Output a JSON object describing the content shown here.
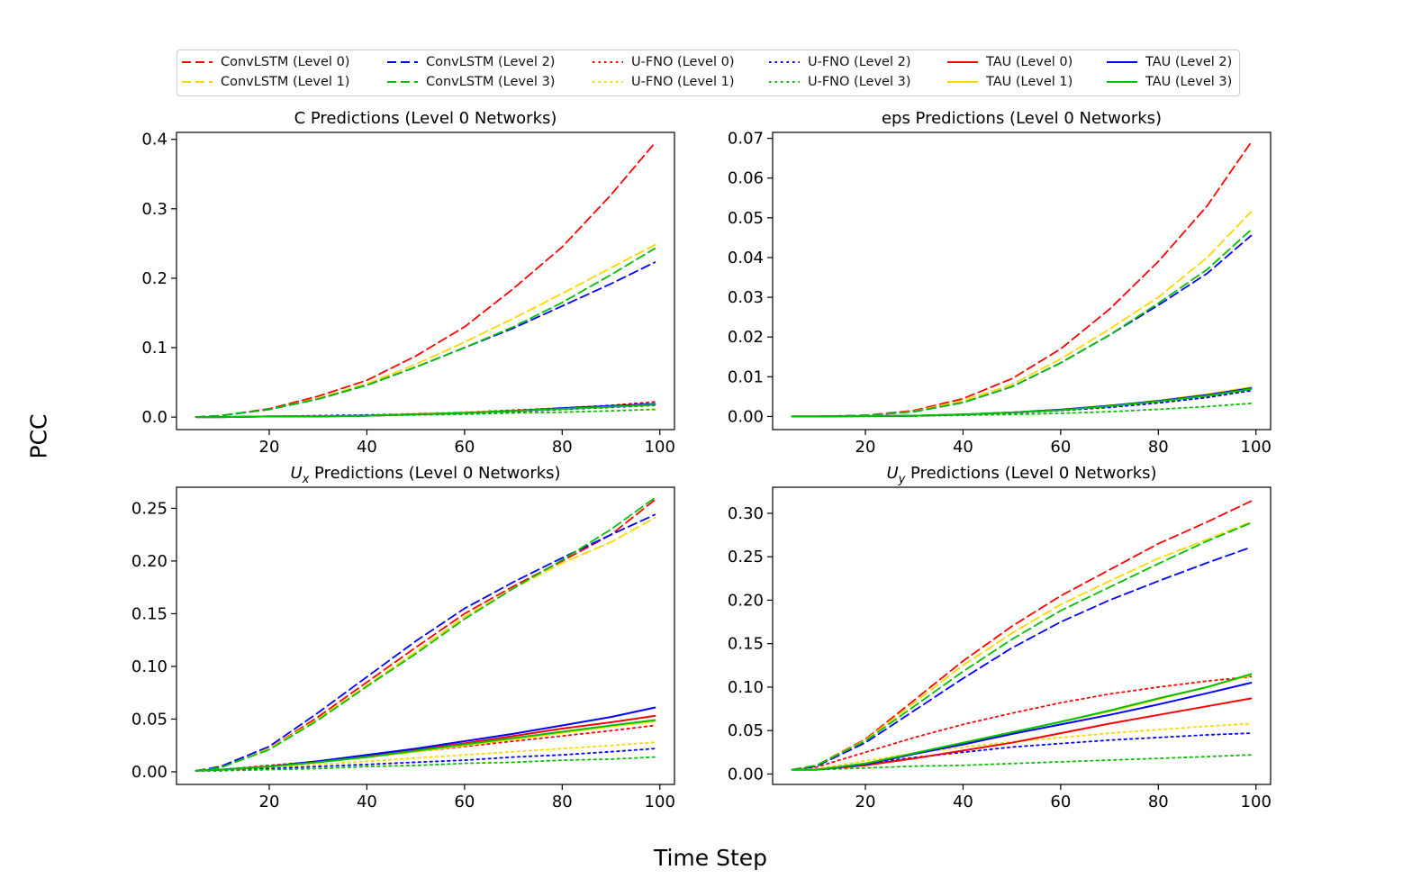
{
  "figure": {
    "ylabel": "PCC",
    "xlabel": "Time Step"
  },
  "legend": [
    {
      "label": "ConvLSTM (Level 0)",
      "color": "#ff0000",
      "style": "dashed"
    },
    {
      "label": "ConvLSTM (Level 1)",
      "color": "#ffd700",
      "style": "dashed"
    },
    {
      "label": "ConvLSTM (Level 2)",
      "color": "#0000ff",
      "style": "dashed"
    },
    {
      "label": "ConvLSTM (Level 3)",
      "color": "#00c000",
      "style": "dashed"
    },
    {
      "label": "U-FNO (Level 0)",
      "color": "#ff0000",
      "style": "dotted"
    },
    {
      "label": "U-FNO (Level 1)",
      "color": "#ffd700",
      "style": "dotted"
    },
    {
      "label": "U-FNO (Level 2)",
      "color": "#0000ff",
      "style": "dotted"
    },
    {
      "label": "U-FNO (Level 3)",
      "color": "#00c000",
      "style": "dotted"
    },
    {
      "label": "TAU (Level 0)",
      "color": "#ff0000",
      "style": "solid"
    },
    {
      "label": "TAU (Level 1)",
      "color": "#ffd700",
      "style": "solid"
    },
    {
      "label": "TAU (Level 2)",
      "color": "#0000ff",
      "style": "solid"
    },
    {
      "label": "TAU (Level 3)",
      "color": "#00c000",
      "style": "solid"
    }
  ],
  "chart_data": [
    {
      "type": "line",
      "title": "C Predictions (Level 0 Networks)",
      "x": [
        5,
        10,
        20,
        30,
        40,
        50,
        60,
        70,
        80,
        90,
        99
      ],
      "xlim": [
        1,
        103
      ],
      "ylim": [
        -0.018,
        0.41
      ],
      "xticks": [
        20,
        40,
        60,
        80,
        100
      ],
      "yticks": [
        0.0,
        0.1,
        0.2,
        0.3,
        0.4
      ],
      "ytick_labels": [
        "0.0",
        "0.1",
        "0.2",
        "0.3",
        "0.4"
      ],
      "series": [
        {
          "name": "ConvLSTM (Level 0)",
          "values": [
            0,
            0.002,
            0.012,
            0.03,
            0.053,
            0.088,
            0.13,
            0.185,
            0.245,
            0.32,
            0.395
          ]
        },
        {
          "name": "ConvLSTM (Level 1)",
          "values": [
            0,
            0.002,
            0.011,
            0.027,
            0.048,
            0.076,
            0.108,
            0.142,
            0.178,
            0.215,
            0.248
          ]
        },
        {
          "name": "ConvLSTM (Level 2)",
          "values": [
            0,
            0.002,
            0.011,
            0.026,
            0.046,
            0.072,
            0.1,
            0.128,
            0.16,
            0.192,
            0.223
          ]
        },
        {
          "name": "ConvLSTM (Level 3)",
          "values": [
            0,
            0.002,
            0.011,
            0.026,
            0.046,
            0.072,
            0.1,
            0.13,
            0.165,
            0.205,
            0.243
          ]
        },
        {
          "name": "U-FNO (Level 0)",
          "values": [
            0,
            0,
            0.001,
            0.002,
            0.003,
            0.005,
            0.007,
            0.01,
            0.013,
            0.017,
            0.022
          ]
        },
        {
          "name": "U-FNO (Level 1)",
          "values": [
            0,
            0,
            0.001,
            0.002,
            0.003,
            0.005,
            0.007,
            0.009,
            0.012,
            0.015,
            0.018
          ]
        },
        {
          "name": "U-FNO (Level 2)",
          "values": [
            0,
            0,
            0.001,
            0.002,
            0.003,
            0.004,
            0.006,
            0.008,
            0.011,
            0.014,
            0.017
          ]
        },
        {
          "name": "U-FNO (Level 3)",
          "values": [
            0,
            0,
            0.001,
            0.001,
            0.002,
            0.003,
            0.004,
            0.006,
            0.007,
            0.009,
            0.011
          ]
        },
        {
          "name": "TAU (Level 0)",
          "values": [
            0,
            0,
            0.001,
            0.001,
            0.002,
            0.004,
            0.006,
            0.009,
            0.012,
            0.015,
            0.018
          ]
        },
        {
          "name": "TAU (Level 1)",
          "values": [
            0,
            0,
            0.001,
            0.001,
            0.002,
            0.004,
            0.006,
            0.009,
            0.012,
            0.015,
            0.018
          ]
        },
        {
          "name": "TAU (Level 2)",
          "values": [
            0,
            0,
            0.001,
            0.001,
            0.002,
            0.004,
            0.006,
            0.009,
            0.013,
            0.016,
            0.019
          ]
        },
        {
          "name": "TAU (Level 3)",
          "values": [
            0,
            0,
            0.001,
            0.001,
            0.002,
            0.004,
            0.006,
            0.009,
            0.012,
            0.015,
            0.018
          ]
        }
      ]
    },
    {
      "type": "line",
      "title": "eps Predictions (Level 0 Networks)",
      "x": [
        5,
        10,
        20,
        30,
        40,
        50,
        60,
        70,
        80,
        90,
        99
      ],
      "xlim": [
        1,
        103
      ],
      "ylim": [
        -0.0033,
        0.0715
      ],
      "xticks": [
        20,
        40,
        60,
        80,
        100
      ],
      "yticks": [
        0.0,
        0.01,
        0.02,
        0.03,
        0.04,
        0.05,
        0.06,
        0.07
      ],
      "ytick_labels": [
        "0.00",
        "0.01",
        "0.02",
        "0.03",
        "0.04",
        "0.05",
        "0.06",
        "0.07"
      ],
      "series": [
        {
          "name": "ConvLSTM (Level 0)",
          "values": [
            0,
            0,
            0.0003,
            0.0015,
            0.0045,
            0.0095,
            0.017,
            0.027,
            0.039,
            0.053,
            0.069
          ]
        },
        {
          "name": "ConvLSTM (Level 1)",
          "values": [
            0,
            0,
            0.0003,
            0.0013,
            0.004,
            0.008,
            0.0145,
            0.022,
            0.03,
            0.04,
            0.0515
          ]
        },
        {
          "name": "ConvLSTM (Level 2)",
          "values": [
            0,
            0,
            0.0003,
            0.0012,
            0.0035,
            0.0075,
            0.0135,
            0.0205,
            0.028,
            0.036,
            0.0455
          ]
        },
        {
          "name": "ConvLSTM (Level 3)",
          "values": [
            0,
            0,
            0.0003,
            0.0012,
            0.0035,
            0.0075,
            0.0135,
            0.0205,
            0.0285,
            0.037,
            0.047
          ]
        },
        {
          "name": "U-FNO (Level 0)",
          "values": [
            0,
            0,
            0.0001,
            0.0002,
            0.0005,
            0.0009,
            0.0015,
            0.0023,
            0.0034,
            0.0048,
            0.0065
          ]
        },
        {
          "name": "U-FNO (Level 1)",
          "values": [
            0,
            0,
            0.0001,
            0.0002,
            0.0005,
            0.0009,
            0.0015,
            0.0024,
            0.0036,
            0.005,
            0.0068
          ]
        },
        {
          "name": "U-FNO (Level 2)",
          "values": [
            0,
            0,
            0.0001,
            0.0002,
            0.0005,
            0.0009,
            0.0015,
            0.0023,
            0.0034,
            0.0048,
            0.0065
          ]
        },
        {
          "name": "U-FNO (Level 3)",
          "values": [
            0,
            0,
            0,
            0.0001,
            0.0003,
            0.0005,
            0.0008,
            0.0012,
            0.0018,
            0.0025,
            0.0033
          ]
        },
        {
          "name": "TAU (Level 0)",
          "values": [
            0,
            0,
            0.0001,
            0.0002,
            0.0005,
            0.001,
            0.0017,
            0.0027,
            0.0039,
            0.0054,
            0.0071
          ]
        },
        {
          "name": "TAU (Level 1)",
          "values": [
            0,
            0,
            0.0001,
            0.0002,
            0.0005,
            0.001,
            0.0017,
            0.0027,
            0.004,
            0.0056,
            0.0074
          ]
        },
        {
          "name": "TAU (Level 2)",
          "values": [
            0,
            0,
            0.0001,
            0.0002,
            0.0005,
            0.001,
            0.0017,
            0.0027,
            0.0039,
            0.0054,
            0.0071
          ]
        },
        {
          "name": "TAU (Level 3)",
          "values": [
            0,
            0,
            0.0001,
            0.0002,
            0.0005,
            0.001,
            0.0016,
            0.0026,
            0.0038,
            0.0052,
            0.0069
          ]
        }
      ]
    },
    {
      "type": "line",
      "title": "Predictions (Level 0 Networks)",
      "title_var": "U",
      "title_sub": "x",
      "x": [
        5,
        10,
        20,
        30,
        40,
        50,
        60,
        70,
        80,
        90,
        99
      ],
      "xlim": [
        1,
        103
      ],
      "ylim": [
        -0.012,
        0.27
      ],
      "xticks": [
        20,
        40,
        60,
        80,
        100
      ],
      "yticks": [
        0.0,
        0.05,
        0.1,
        0.15,
        0.2,
        0.25
      ],
      "ytick_labels": [
        "0.00",
        "0.05",
        "0.10",
        "0.15",
        "0.20",
        "0.25"
      ],
      "series": [
        {
          "name": "ConvLSTM (Level 0)",
          "values": [
            0.001,
            0.004,
            0.022,
            0.052,
            0.085,
            0.118,
            0.15,
            0.176,
            0.2,
            0.225,
            0.258
          ]
        },
        {
          "name": "ConvLSTM (Level 1)",
          "values": [
            0.001,
            0.004,
            0.022,
            0.05,
            0.082,
            0.114,
            0.147,
            0.174,
            0.198,
            0.218,
            0.241
          ]
        },
        {
          "name": "ConvLSTM (Level 2)",
          "values": [
            0.001,
            0.005,
            0.024,
            0.056,
            0.09,
            0.124,
            0.155,
            0.18,
            0.203,
            0.225,
            0.244
          ]
        },
        {
          "name": "ConvLSTM (Level 3)",
          "values": [
            0.001,
            0.004,
            0.021,
            0.049,
            0.081,
            0.112,
            0.145,
            0.174,
            0.201,
            0.23,
            0.26
          ]
        },
        {
          "name": "U-FNO (Level 0)",
          "values": [
            0.001,
            0.002,
            0.006,
            0.01,
            0.014,
            0.019,
            0.024,
            0.029,
            0.034,
            0.039,
            0.044
          ]
        },
        {
          "name": "U-FNO (Level 1)",
          "values": [
            0.001,
            0.002,
            0.004,
            0.007,
            0.01,
            0.013,
            0.016,
            0.019,
            0.022,
            0.025,
            0.028
          ]
        },
        {
          "name": "U-FNO (Level 2)",
          "values": [
            0.001,
            0.001,
            0.003,
            0.005,
            0.007,
            0.009,
            0.011,
            0.014,
            0.016,
            0.019,
            0.022
          ]
        },
        {
          "name": "U-FNO (Level 3)",
          "values": [
            0.001,
            0.001,
            0.002,
            0.003,
            0.005,
            0.006,
            0.008,
            0.009,
            0.011,
            0.012,
            0.014
          ]
        },
        {
          "name": "TAU (Level 0)",
          "values": [
            0.001,
            0.002,
            0.005,
            0.01,
            0.015,
            0.021,
            0.027,
            0.034,
            0.041,
            0.047,
            0.053
          ]
        },
        {
          "name": "TAU (Level 1)",
          "values": [
            0.001,
            0.002,
            0.005,
            0.009,
            0.014,
            0.019,
            0.025,
            0.031,
            0.037,
            0.043,
            0.048
          ]
        },
        {
          "name": "TAU (Level 2)",
          "values": [
            0.001,
            0.002,
            0.005,
            0.01,
            0.016,
            0.022,
            0.029,
            0.036,
            0.044,
            0.052,
            0.061
          ]
        },
        {
          "name": "TAU (Level 3)",
          "values": [
            0.001,
            0.002,
            0.005,
            0.009,
            0.014,
            0.02,
            0.026,
            0.032,
            0.038,
            0.044,
            0.049
          ]
        }
      ]
    },
    {
      "type": "line",
      "title": "Predictions (Level 0 Networks)",
      "title_var": "U",
      "title_sub": "y",
      "x": [
        5,
        10,
        20,
        30,
        40,
        50,
        60,
        70,
        80,
        90,
        99
      ],
      "xlim": [
        1,
        103
      ],
      "ylim": [
        -0.012,
        0.33
      ],
      "xticks": [
        20,
        40,
        60,
        80,
        100
      ],
      "yticks": [
        0.0,
        0.05,
        0.1,
        0.15,
        0.2,
        0.25,
        0.3
      ],
      "ytick_labels": [
        "0.00",
        "0.05",
        "0.10",
        "0.15",
        "0.20",
        "0.25",
        "0.30"
      ],
      "series": [
        {
          "name": "ConvLSTM (Level 0)",
          "values": [
            0.005,
            0.01,
            0.04,
            0.085,
            0.13,
            0.17,
            0.205,
            0.235,
            0.265,
            0.29,
            0.314
          ]
        },
        {
          "name": "ConvLSTM (Level 1)",
          "values": [
            0.005,
            0.01,
            0.039,
            0.082,
            0.125,
            0.162,
            0.195,
            0.222,
            0.248,
            0.27,
            0.29
          ]
        },
        {
          "name": "ConvLSTM (Level 2)",
          "values": [
            0.005,
            0.009,
            0.036,
            0.073,
            0.11,
            0.145,
            0.175,
            0.2,
            0.222,
            0.243,
            0.261
          ]
        },
        {
          "name": "ConvLSTM (Level 3)",
          "values": [
            0.005,
            0.01,
            0.038,
            0.078,
            0.118,
            0.155,
            0.188,
            0.215,
            0.242,
            0.268,
            0.289
          ]
        },
        {
          "name": "U-FNO (Level 0)",
          "values": [
            0.005,
            0.008,
            0.025,
            0.042,
            0.057,
            0.07,
            0.082,
            0.092,
            0.1,
            0.107,
            0.112
          ]
        },
        {
          "name": "U-FNO (Level 1)",
          "values": [
            0.005,
            0.006,
            0.015,
            0.024,
            0.031,
            0.037,
            0.042,
            0.047,
            0.051,
            0.055,
            0.058
          ]
        },
        {
          "name": "U-FNO (Level 2)",
          "values": [
            0.005,
            0.005,
            0.012,
            0.019,
            0.025,
            0.031,
            0.035,
            0.039,
            0.042,
            0.045,
            0.047
          ]
        },
        {
          "name": "U-FNO (Level 3)",
          "values": [
            0.005,
            0.005,
            0.007,
            0.009,
            0.01,
            0.012,
            0.014,
            0.016,
            0.018,
            0.02,
            0.022
          ]
        },
        {
          "name": "TAU (Level 0)",
          "values": [
            0.005,
            0.005,
            0.01,
            0.018,
            0.027,
            0.036,
            0.047,
            0.058,
            0.068,
            0.078,
            0.087
          ]
        },
        {
          "name": "TAU (Level 1)",
          "values": [
            0.005,
            0.005,
            0.012,
            0.024,
            0.036,
            0.048,
            0.06,
            0.072,
            0.086,
            0.1,
            0.114
          ]
        },
        {
          "name": "TAU (Level 2)",
          "values": [
            0.005,
            0.005,
            0.011,
            0.023,
            0.034,
            0.046,
            0.057,
            0.068,
            0.08,
            0.093,
            0.105
          ]
        },
        {
          "name": "TAU (Level 3)",
          "values": [
            0.005,
            0.005,
            0.012,
            0.024,
            0.036,
            0.048,
            0.06,
            0.073,
            0.087,
            0.1,
            0.115
          ]
        }
      ]
    }
  ]
}
